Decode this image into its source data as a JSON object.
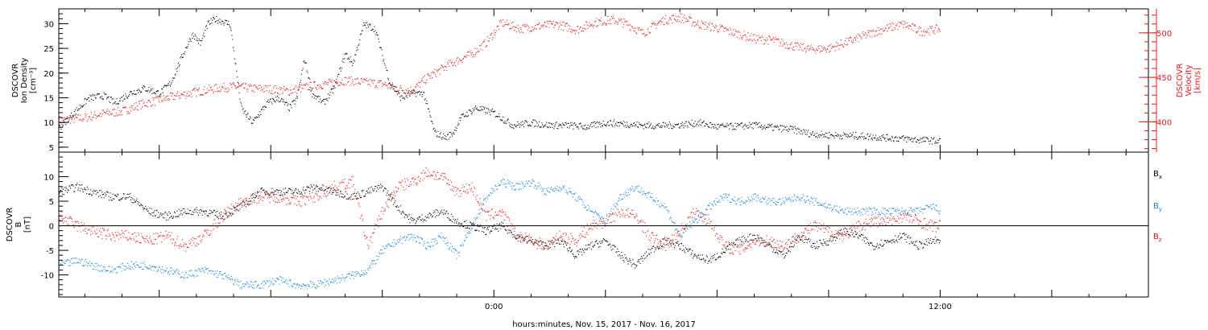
{
  "figure": {
    "xlabel": "hours:minutes, Nov. 15, 2017 - Nov. 16, 2017",
    "x_tick_labels": [
      "0:00",
      "12:00"
    ]
  },
  "colors": {
    "black": "#000000",
    "red": "#e8191c",
    "blue": "#1a86d6"
  },
  "chart_data": [
    {
      "type": "scatter",
      "panel": "top",
      "x_unit": "hours relative to Nov. 16, 2017 0:00",
      "xlim": [
        -11.7,
        17.6
      ],
      "left_axis": {
        "label_lines": [
          "DSCOVR",
          "Ion Density",
          "[cm⁻³]"
        ],
        "ylim": [
          4,
          33
        ],
        "ticks": [
          5,
          10,
          15,
          20,
          25,
          30
        ]
      },
      "right_axis": {
        "label_lines": [
          "DSCOVR",
          "Velocity",
          "[km/s]"
        ],
        "ylim": [
          366,
          527
        ],
        "ticks": [
          400,
          450,
          500
        ]
      },
      "series": [
        {
          "name": "",
          "axis": "left",
          "color": "#000000",
          "x": [
            -11.7,
            -11.3,
            -10.9,
            -10.5,
            -10.2,
            -9.8,
            -9.4,
            -9.0,
            -8.7,
            -8.3,
            -8.1,
            -7.9,
            -7.7,
            -7.5,
            -7.1,
            -6.8,
            -6.5,
            -6.3,
            -6.1,
            -5.8,
            -5.5,
            -5.3,
            -5.1,
            -4.9,
            -4.6,
            -4.3,
            -4.0,
            -3.8,
            -3.5,
            -3.2,
            -2.8,
            -2.5,
            -2.2,
            -1.9,
            -1.6,
            -1.3,
            -1.1,
            -0.9,
            -0.5,
            0.0,
            0.5,
            1.0,
            1.5,
            2.0,
            2.5,
            3.0,
            3.5,
            4.0,
            4.5,
            5.0,
            5.5,
            6.0,
            6.5,
            7.0,
            7.5,
            8.0,
            8.5,
            9.0,
            9.5,
            10.0,
            10.5,
            11.0,
            11.5,
            12.0
          ],
          "y": [
            9,
            12,
            15,
            15.5,
            14,
            16,
            17,
            16,
            18,
            25,
            28,
            26,
            30,
            31,
            30,
            13,
            10,
            12,
            14,
            15,
            13,
            15,
            23,
            16,
            14,
            17,
            24,
            22,
            30,
            29,
            18,
            15,
            16,
            16,
            8,
            7,
            8,
            11,
            13,
            12,
            9.5,
            10,
            9.5,
            9.5,
            9.2,
            10,
            9.8,
            9.5,
            9.4,
            9.6,
            10,
            9.2,
            9.3,
            9.5,
            9.0,
            8.7,
            7.8,
            7.5,
            7.4,
            7.3,
            7.0,
            6.8,
            6.5,
            6.3
          ]
        },
        {
          "name": "",
          "axis": "right",
          "color": "#e8191c",
          "x": [
            -11.7,
            -11.0,
            -10.5,
            -10.0,
            -9.5,
            -9.0,
            -8.5,
            -8.0,
            -7.5,
            -7.0,
            -6.5,
            -6.0,
            -5.5,
            -5.0,
            -4.5,
            -4.0,
            -3.5,
            -3.0,
            -2.5,
            -2.2,
            -1.8,
            -1.2,
            -0.6,
            -0.2,
            0.2,
            0.7,
            1.2,
            1.7,
            2.2,
            2.7,
            3.2,
            3.6,
            4.0,
            4.5,
            5.0,
            5.5,
            6.0,
            6.5,
            7.0,
            7.5,
            8.0,
            8.5,
            9.0,
            9.5,
            10.0,
            10.5,
            11.0,
            11.5,
            12.0
          ],
          "y": [
            402,
            405,
            410,
            412,
            420,
            425,
            430,
            434,
            438,
            440,
            438,
            437,
            435,
            440,
            443,
            447,
            445,
            443,
            437,
            436,
            450,
            465,
            477,
            490,
            512,
            505,
            508,
            510,
            504,
            512,
            515,
            510,
            500,
            514,
            518,
            510,
            506,
            500,
            494,
            492,
            486,
            482,
            483,
            490,
            498,
            505,
            510,
            502,
            505
          ]
        }
      ]
    },
    {
      "type": "scatter",
      "panel": "bottom",
      "x_unit": "hours relative to Nov. 16, 2017 0:00",
      "xlim": [
        -11.7,
        17.6
      ],
      "left_axis": {
        "label_lines": [
          "DSCOVR",
          "B",
          "[nT]"
        ],
        "ylim": [
          -14.5,
          15
        ],
        "ticks": [
          -10,
          -5,
          0,
          5,
          10
        ]
      },
      "reference_line": 0,
      "legend": [
        {
          "text": "B",
          "sub": "x",
          "color": "#000000"
        },
        {
          "text": "B",
          "sub": "y",
          "color": "#1a86d6"
        },
        {
          "text": "B",
          "sub": "z",
          "color": "#e8191c"
        }
      ],
      "series": [
        {
          "name": "Bx",
          "color": "#000000",
          "x": [
            -11.7,
            -11.2,
            -10.8,
            -10.3,
            -9.8,
            -9.3,
            -8.8,
            -8.3,
            -7.8,
            -7.3,
            -6.8,
            -6.3,
            -5.8,
            -5.3,
            -4.8,
            -4.3,
            -3.8,
            -3.4,
            -3.0,
            -2.6,
            -2.2,
            -1.8,
            -1.4,
            -1.0,
            -0.6,
            -0.2,
            0.2,
            0.6,
            1.0,
            1.4,
            1.8,
            2.2,
            2.6,
            3.0,
            3.4,
            3.8,
            4.2,
            4.6,
            5.0,
            5.4,
            5.8,
            6.2,
            6.6,
            7.0,
            7.4,
            7.8,
            8.2,
            8.6,
            9.0,
            9.4,
            9.8,
            10.2,
            10.6,
            11.0,
            11.4,
            11.8,
            12.0
          ],
          "y": [
            7,
            8,
            7,
            6,
            6,
            3,
            2,
            3,
            3,
            2,
            4,
            7,
            7,
            7,
            8,
            7,
            6,
            7,
            8,
            4,
            1,
            2,
            3,
            1,
            0,
            -1,
            0,
            -2,
            -3,
            -4,
            -3,
            -6,
            -4,
            -3,
            -6,
            -8,
            -5,
            -3,
            -4,
            -6,
            -7,
            -5,
            -3,
            -2,
            -4,
            -6,
            -2,
            -4,
            -3,
            -1,
            -2,
            -4,
            -3,
            -2,
            -4,
            -3,
            -3
          ]
        },
        {
          "name": "By",
          "color": "#1a86d6",
          "x": [
            -11.7,
            -11.2,
            -10.8,
            -10.3,
            -9.8,
            -9.3,
            -8.8,
            -8.3,
            -7.8,
            -7.3,
            -6.8,
            -6.3,
            -5.8,
            -5.3,
            -4.8,
            -4.3,
            -3.8,
            -3.4,
            -3.0,
            -2.6,
            -2.2,
            -1.8,
            -1.4,
            -1.0,
            -0.6,
            -0.2,
            0.2,
            0.6,
            1.0,
            1.4,
            1.8,
            2.2,
            2.6,
            3.0,
            3.4,
            3.8,
            4.2,
            4.6,
            5.0,
            5.4,
            5.8,
            6.2,
            6.6,
            7.0,
            7.4,
            7.8,
            8.2,
            8.6,
            9.0,
            9.4,
            9.8,
            10.2,
            10.6,
            11.0,
            11.4,
            11.8,
            12.0
          ],
          "y": [
            -8,
            -7,
            -8,
            -9,
            -8,
            -8,
            -9,
            -10,
            -9,
            -10,
            -12,
            -12,
            -11,
            -12,
            -12,
            -11,
            -10,
            -9,
            -5,
            -3,
            -2,
            -4,
            -2,
            -6,
            0,
            6,
            9,
            8,
            9,
            7,
            8,
            6,
            3,
            1,
            6,
            8,
            6,
            4,
            -2,
            1,
            4,
            6,
            5,
            6,
            5,
            5,
            6,
            5,
            4,
            3,
            3,
            3,
            3,
            3,
            3,
            4,
            3
          ]
        },
        {
          "name": "Bz",
          "color": "#e8191c",
          "x": [
            -11.7,
            -11.2,
            -10.8,
            -10.3,
            -9.8,
            -9.3,
            -8.8,
            -8.3,
            -7.8,
            -7.3,
            -6.8,
            -6.3,
            -5.8,
            -5.3,
            -4.8,
            -4.3,
            -3.8,
            -3.4,
            -3.0,
            -2.6,
            -2.2,
            -1.8,
            -1.4,
            -1.0,
            -0.6,
            -0.2,
            0.2,
            0.6,
            1.0,
            1.4,
            1.8,
            2.2,
            2.6,
            3.0,
            3.4,
            3.8,
            4.2,
            4.6,
            5.0,
            5.4,
            5.8,
            6.2,
            6.6,
            7.0,
            7.4,
            7.8,
            8.2,
            8.6,
            9.0,
            9.4,
            9.8,
            10.2,
            10.6,
            11.0,
            11.4,
            11.8,
            12.0
          ],
          "y": [
            2,
            0,
            -1,
            -2,
            -2,
            -3,
            -2,
            -4,
            -2,
            2,
            5,
            6,
            6,
            5,
            6,
            8,
            9,
            -4,
            3,
            8,
            9,
            11,
            10,
            7,
            8,
            2,
            3,
            -2,
            -3,
            -4,
            -2,
            -3,
            0,
            1,
            3,
            2,
            -2,
            -4,
            -1,
            3,
            1,
            -4,
            -5,
            -3,
            -3,
            -4,
            -2,
            0,
            -1,
            -2,
            0,
            1,
            1,
            2,
            1,
            0,
            0
          ]
        }
      ]
    }
  ]
}
